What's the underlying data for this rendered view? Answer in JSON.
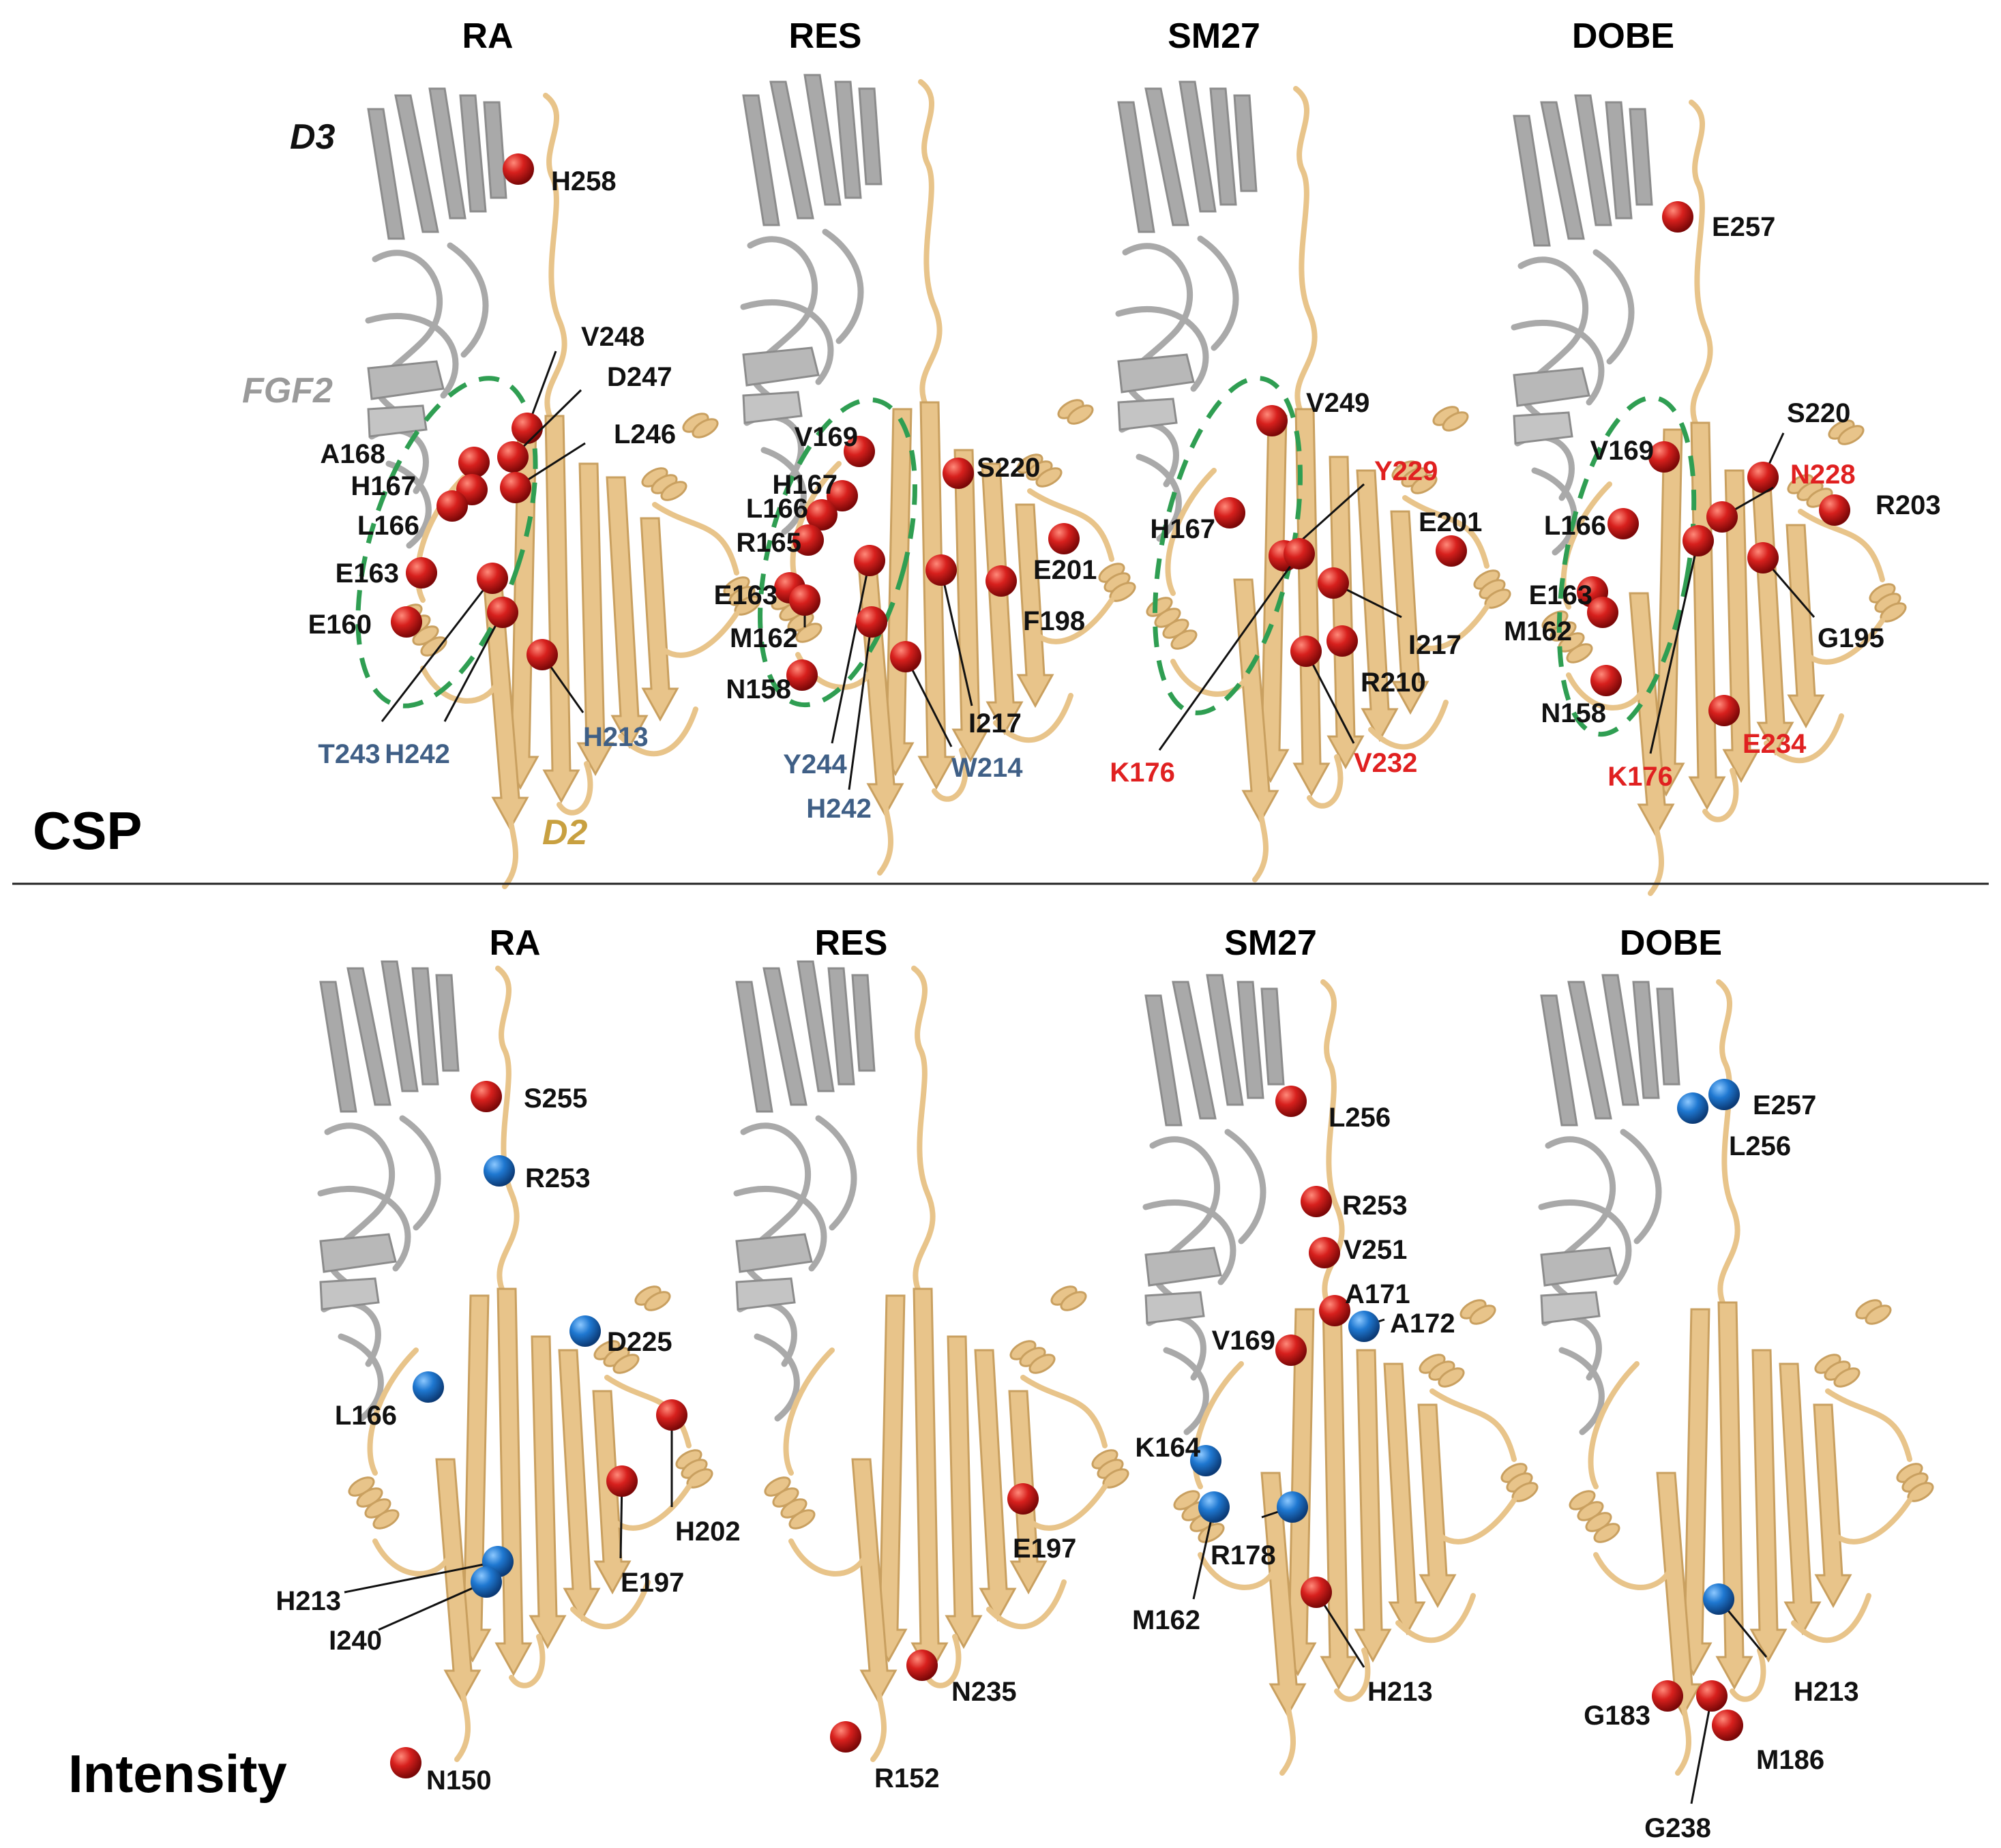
{
  "section_labels": {
    "csp": "CSP",
    "intensity": "Intensity"
  },
  "domain_labels": {
    "d3": "D3",
    "fgf2": "FGF2",
    "d2": "D2"
  },
  "colors": {
    "red_sphere": "#d7201d",
    "blue_sphere": "#1f78d1",
    "tan_cartoon": "#e8c48a",
    "tan_edge": "#c9a060",
    "gray_cartoon": "#a9a9a9",
    "green_dash": "#2f9e52",
    "black_label": "#111111",
    "blue_label": "#3f5f86",
    "red_label": "#e02020",
    "d2_label": "#c8a040",
    "fgf2_label": "#9a9a9a"
  },
  "panels": [
    {
      "row": "csp",
      "title": "RA",
      "residues": [
        {
          "label": "H258",
          "color": "red",
          "label_color": "black"
        },
        {
          "label": "V248",
          "color": "red",
          "label_color": "black"
        },
        {
          "label": "D247",
          "color": "red",
          "label_color": "black"
        },
        {
          "label": "L246",
          "color": "red",
          "label_color": "black"
        },
        {
          "label": "A168",
          "color": "red",
          "label_color": "black"
        },
        {
          "label": "H167",
          "color": "red",
          "label_color": "black"
        },
        {
          "label": "L166",
          "color": "red",
          "label_color": "black"
        },
        {
          "label": "E163",
          "color": "red",
          "label_color": "black"
        },
        {
          "label": "E160",
          "color": "red",
          "label_color": "black"
        },
        {
          "label": "T243",
          "color": "red",
          "label_color": "blue"
        },
        {
          "label": "H242",
          "color": "red",
          "label_color": "blue"
        },
        {
          "label": "H213",
          "color": "red",
          "label_color": "blue"
        }
      ]
    },
    {
      "row": "csp",
      "title": "RES",
      "residues": [
        {
          "label": "V169",
          "color": "red",
          "label_color": "black"
        },
        {
          "label": "S220",
          "color": "red",
          "label_color": "black"
        },
        {
          "label": "H167",
          "color": "red",
          "label_color": "black"
        },
        {
          "label": "L166",
          "color": "red",
          "label_color": "black"
        },
        {
          "label": "R165",
          "color": "red",
          "label_color": "black"
        },
        {
          "label": "E201",
          "color": "red",
          "label_color": "black"
        },
        {
          "label": "E163",
          "color": "red",
          "label_color": "black"
        },
        {
          "label": "F198",
          "color": "red",
          "label_color": "black"
        },
        {
          "label": "M162",
          "color": "red",
          "label_color": "black"
        },
        {
          "label": "N158",
          "color": "red",
          "label_color": "black"
        },
        {
          "label": "I217",
          "color": "red",
          "label_color": "black"
        },
        {
          "label": "Y244",
          "color": "red",
          "label_color": "blue"
        },
        {
          "label": "W214",
          "color": "red",
          "label_color": "blue"
        },
        {
          "label": "H242",
          "color": "red",
          "label_color": "blue"
        }
      ]
    },
    {
      "row": "csp",
      "title": "SM27",
      "residues": [
        {
          "label": "V249",
          "color": "red",
          "label_color": "black"
        },
        {
          "label": "Y229",
          "color": "red",
          "label_color": "red"
        },
        {
          "label": "H167",
          "color": "red",
          "label_color": "black"
        },
        {
          "label": "E201",
          "color": "red",
          "label_color": "black"
        },
        {
          "label": "I217",
          "color": "red",
          "label_color": "black"
        },
        {
          "label": "R210",
          "color": "red",
          "label_color": "black"
        },
        {
          "label": "K176",
          "color": "red",
          "label_color": "red"
        },
        {
          "label": "V232",
          "color": "red",
          "label_color": "red"
        }
      ]
    },
    {
      "row": "csp",
      "title": "DOBE",
      "residues": [
        {
          "label": "E257",
          "color": "red",
          "label_color": "black"
        },
        {
          "label": "S220",
          "color": "red",
          "label_color": "black"
        },
        {
          "label": "V169",
          "color": "red",
          "label_color": "black"
        },
        {
          "label": "N228",
          "color": "red",
          "label_color": "red"
        },
        {
          "label": "R203",
          "color": "red",
          "label_color": "black"
        },
        {
          "label": "L166",
          "color": "red",
          "label_color": "black"
        },
        {
          "label": "E163",
          "color": "red",
          "label_color": "black"
        },
        {
          "label": "M162",
          "color": "red",
          "label_color": "black"
        },
        {
          "label": "G195",
          "color": "red",
          "label_color": "black"
        },
        {
          "label": "N158",
          "color": "red",
          "label_color": "black"
        },
        {
          "label": "E234",
          "color": "red",
          "label_color": "red"
        },
        {
          "label": "K176",
          "color": "red",
          "label_color": "red"
        }
      ]
    },
    {
      "row": "intensity",
      "title": "RA",
      "residues": [
        {
          "label": "S255",
          "color": "red",
          "label_color": "black"
        },
        {
          "label": "R253",
          "color": "blue",
          "label_color": "black"
        },
        {
          "label": "D225",
          "color": "blue",
          "label_color": "black"
        },
        {
          "label": "L166",
          "color": "blue",
          "label_color": "black"
        },
        {
          "label": "H202",
          "color": "red",
          "label_color": "black"
        },
        {
          "label": "E197",
          "color": "red",
          "label_color": "black"
        },
        {
          "label": "H213",
          "color": "blue",
          "label_color": "black"
        },
        {
          "label": "I240",
          "color": "blue",
          "label_color": "black"
        },
        {
          "label": "N150",
          "color": "red",
          "label_color": "black"
        }
      ]
    },
    {
      "row": "intensity",
      "title": "RES",
      "residues": [
        {
          "label": "E197",
          "color": "red",
          "label_color": "black"
        },
        {
          "label": "N235",
          "color": "red",
          "label_color": "black"
        },
        {
          "label": "R152",
          "color": "red",
          "label_color": "black"
        }
      ]
    },
    {
      "row": "intensity",
      "title": "SM27",
      "residues": [
        {
          "label": "L256",
          "color": "red",
          "label_color": "black"
        },
        {
          "label": "R253",
          "color": "red",
          "label_color": "black"
        },
        {
          "label": "V251",
          "color": "red",
          "label_color": "black"
        },
        {
          "label": "A171",
          "color": "red",
          "label_color": "black"
        },
        {
          "label": "A172",
          "color": "blue",
          "label_color": "black"
        },
        {
          "label": "V169",
          "color": "red",
          "label_color": "black"
        },
        {
          "label": "K164",
          "color": "blue",
          "label_color": "black"
        },
        {
          "label": "R178",
          "color": "blue",
          "label_color": "black"
        },
        {
          "label": "M162",
          "color": "blue",
          "label_color": "black"
        },
        {
          "label": "H213",
          "color": "red",
          "label_color": "black"
        }
      ]
    },
    {
      "row": "intensity",
      "title": "DOBE",
      "residues": [
        {
          "label": "E257",
          "color": "blue",
          "label_color": "black"
        },
        {
          "label": "L256",
          "color": "blue",
          "label_color": "black"
        },
        {
          "label": "H213",
          "color": "blue",
          "label_color": "black"
        },
        {
          "label": "G183",
          "color": "red",
          "label_color": "black"
        },
        {
          "label": "M186",
          "color": "red",
          "label_color": "black"
        },
        {
          "label": "G238",
          "color": "red",
          "label_color": "black"
        }
      ]
    }
  ]
}
